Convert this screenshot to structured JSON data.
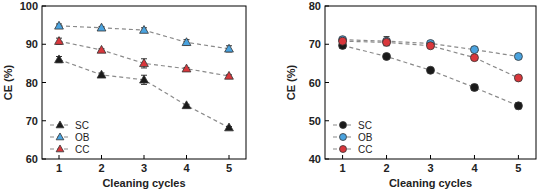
{
  "chart_data": [
    {
      "type": "line",
      "xlabel": "Cleaning cycles",
      "ylabel": "CE (%)",
      "x": [
        1,
        2,
        3,
        4,
        5
      ],
      "xlim": [
        0.6,
        5.4
      ],
      "xticks": [
        1,
        2,
        3,
        4,
        5
      ],
      "ylim": [
        60,
        100
      ],
      "yticks": [
        60,
        70,
        80,
        90,
        100
      ],
      "legend": "lower left",
      "series": [
        {
          "name": "SC",
          "color": "#1a1a1a",
          "marker": "triangle",
          "line_style": "dashed",
          "values": [
            86.0,
            82.0,
            80.7,
            74.0,
            68.2
          ],
          "errors": [
            0.8,
            0.5,
            1.2,
            0.3,
            0.3
          ]
        },
        {
          "name": "OB",
          "color": "#4aa3df",
          "marker": "triangle",
          "line_style": "dashed",
          "values": [
            94.8,
            94.3,
            93.7,
            90.5,
            88.8
          ],
          "errors": [
            0.5,
            0.3,
            0.6,
            0.7,
            0.8
          ]
        },
        {
          "name": "CC",
          "color": "#d9373c",
          "marker": "triangle",
          "line_style": "dashed",
          "values": [
            90.8,
            88.5,
            85.0,
            83.6,
            81.7
          ],
          "errors": [
            0.8,
            0.3,
            1.2,
            0.3,
            0.3
          ]
        }
      ]
    },
    {
      "type": "line",
      "xlabel": "Cleaning cycles",
      "ylabel": "CE (%)",
      "x": [
        1,
        2,
        3,
        4,
        5
      ],
      "xlim": [
        0.6,
        5.4
      ],
      "xticks": [
        1,
        2,
        3,
        4,
        5
      ],
      "ylim": [
        40,
        80
      ],
      "yticks": [
        40,
        50,
        60,
        70,
        80
      ],
      "legend": "lower left",
      "series": [
        {
          "name": "SC",
          "color": "#1a1a1a",
          "marker": "circle",
          "line_style": "dashed",
          "values": [
            69.7,
            66.8,
            63.2,
            58.7,
            53.9
          ],
          "errors": [
            0.8,
            0.3,
            0.3,
            0.8,
            0.8
          ]
        },
        {
          "name": "OB",
          "color": "#4aa3df",
          "marker": "circle",
          "line_style": "dashed",
          "values": [
            71.2,
            70.8,
            70.2,
            68.6,
            66.8
          ],
          "errors": [
            0.5,
            1.2,
            0.4,
            0.3,
            0.3
          ]
        },
        {
          "name": "CC",
          "color": "#d9373c",
          "marker": "circle",
          "line_style": "dashed",
          "values": [
            70.8,
            70.5,
            69.6,
            66.5,
            61.2
          ],
          "errors": [
            0.3,
            0.5,
            0.3,
            0.3,
            0.3
          ]
        }
      ]
    }
  ]
}
